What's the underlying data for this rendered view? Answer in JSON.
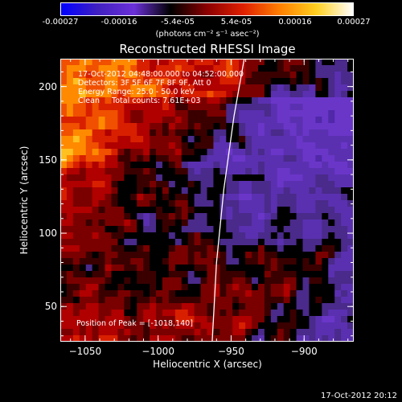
{
  "colorbar": {
    "ticks": [
      "-0.00027",
      "-0.00016",
      "-5.4e-05",
      "5.4e-05",
      "0.00016",
      "0.00027"
    ],
    "unit": "(photons cm⁻² s⁻¹ asec⁻²)",
    "colors": [
      "#0000ff",
      "#4020c0",
      "#6b30d8",
      "#000000",
      "#8b0000",
      "#e02000",
      "#ff8000",
      "#ffd020",
      "#ffffff"
    ]
  },
  "chart_data": {
    "type": "heatmap",
    "title": "Reconstructed RHESSI Image",
    "xlabel": "Heliocentric X (arcsec)",
    "ylabel": "Heliocentric Y (arcsec)",
    "xlim": [
      -1067,
      -866
    ],
    "ylim": [
      26,
      219
    ],
    "x_ticks": [
      -1050,
      -1000,
      -950,
      -900
    ],
    "y_ticks": [
      50,
      100,
      150,
      200
    ],
    "x_tick_labels": [
      "−1050",
      "−1000",
      "−950",
      "−900"
    ],
    "y_tick_labels": [
      "50",
      "100",
      "150",
      "200"
    ],
    "annotations": [
      "17-Oct-2012 04:48:00.000 to 04:52:00.000",
      "Detectors: 3F 5F 6F 7F 8F 9F, Att 0",
      "Energy Range: 25.0 - 50.0 keV",
      "Clean     Total counts: 7.61E+03"
    ],
    "peak_label": "Position of Peak = [-1018,140]",
    "peak": [
      -1018,
      140
    ],
    "limb_curve": [
      [
        -963,
        26
      ],
      [
        -960,
        80
      ],
      [
        -955,
        130
      ],
      [
        -948,
        180
      ],
      [
        -941,
        219
      ]
    ]
  },
  "footer": {
    "timestamp": "17-Oct-2012 20:12"
  }
}
